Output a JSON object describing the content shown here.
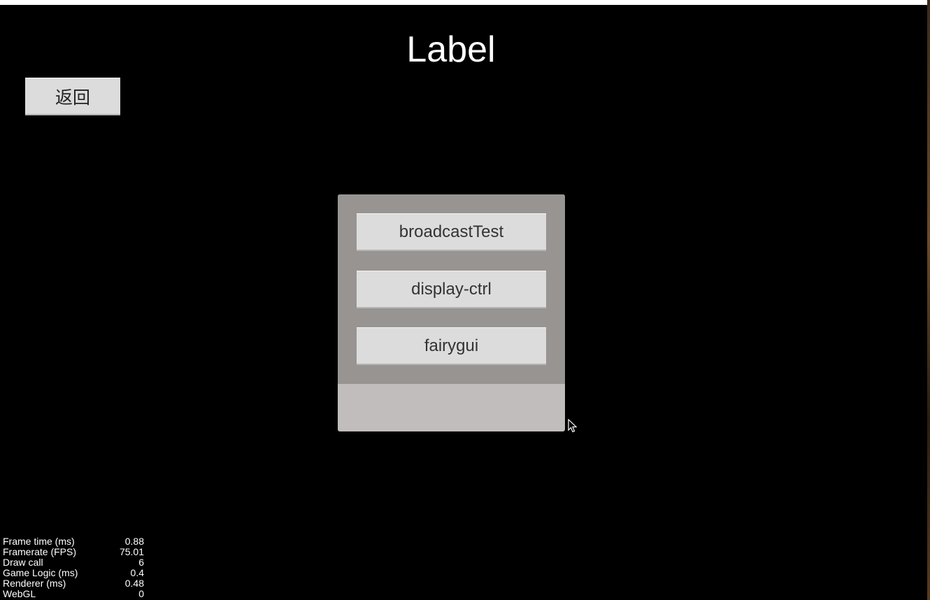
{
  "scene": {
    "title": "Label",
    "back_button_label": "返回"
  },
  "menu": {
    "items": [
      {
        "label": "broadcastTest"
      },
      {
        "label": "display-ctrl"
      },
      {
        "label": "fairygui"
      }
    ]
  },
  "stats": [
    {
      "label": "Frame time (ms)",
      "value": "0.88"
    },
    {
      "label": "Framerate (FPS)",
      "value": "75.01"
    },
    {
      "label": "Draw call",
      "value": "6"
    },
    {
      "label": "Game Logic (ms)",
      "value": "0.4"
    },
    {
      "label": "Renderer (ms)",
      "value": "0.48"
    },
    {
      "label": "WebGL",
      "value": "0"
    }
  ],
  "colors": {
    "background": "#000000",
    "button": "#dcdcdc",
    "panel_list": "#979492",
    "panel": "#c0bdbc"
  }
}
